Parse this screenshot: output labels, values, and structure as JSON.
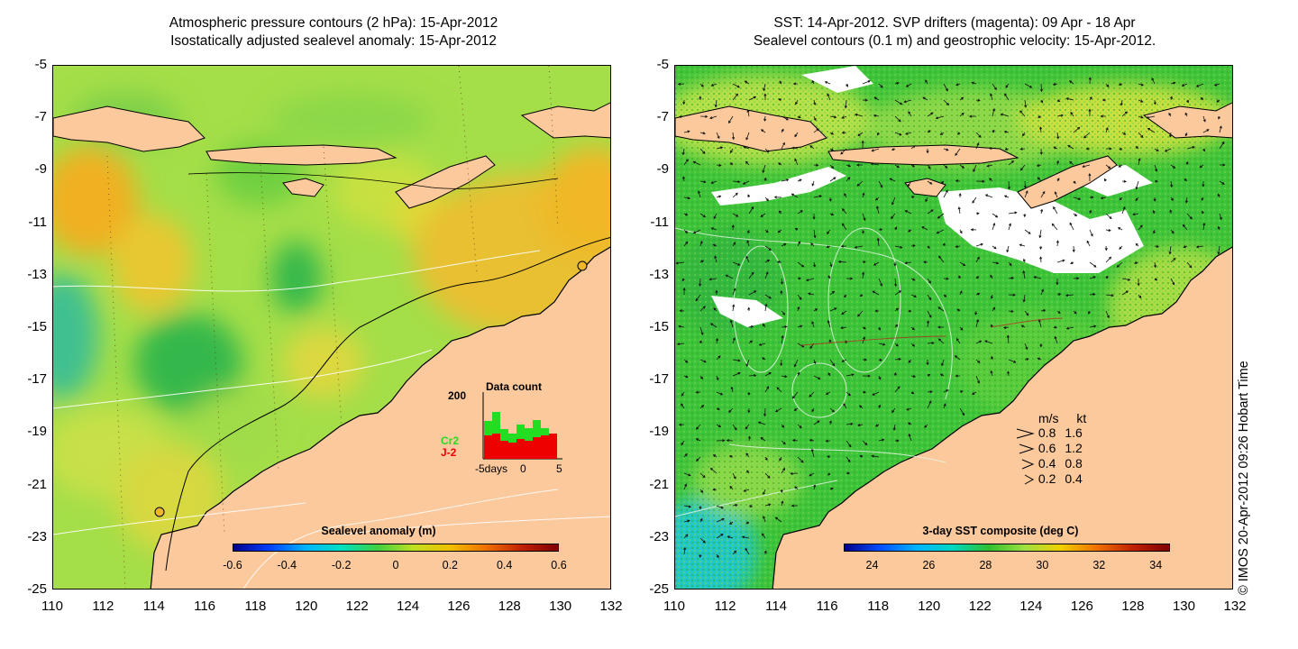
{
  "left_panel": {
    "title_line1": "Atmospheric pressure contours (2 hPa): 15-Apr-2012",
    "title_line2": "Isostatically adjusted sealevel anomaly: 15-Apr-2012",
    "colorbar": {
      "title": "Sealevel anomaly (m)",
      "ticks": [
        "-0.6",
        "-0.4",
        "-0.2",
        "0",
        "0.2",
        "0.4",
        "0.6"
      ],
      "range": [
        -0.6,
        0.6
      ]
    },
    "inset": {
      "title": "Data count",
      "ymax_label": "200",
      "series": [
        {
          "name": "Cr2",
          "color": "#22dd22"
        },
        {
          "name": "J-2",
          "color": "#ee0000"
        }
      ],
      "x_labels": [
        "-5days",
        "0",
        "5"
      ]
    }
  },
  "right_panel": {
    "title_line1": "SST: 14-Apr-2012. SVP drifters (magenta): 09 Apr - 18 Apr",
    "title_line2": "Sealevel contours (0.1 m) and geostrophic velocity: 15-Apr-2012.",
    "colorbar": {
      "title": "3-day SST composite (deg C)",
      "ticks": [
        "24",
        "26",
        "28",
        "30",
        "32",
        "34"
      ],
      "range": [
        23,
        34.5
      ]
    },
    "velocity_legend": {
      "header_ms": "m/s",
      "header_kt": "kt",
      "rows": [
        {
          "ms": "0.8",
          "kt": "1.6"
        },
        {
          "ms": "0.6",
          "kt": "1.2"
        },
        {
          "ms": "0.4",
          "kt": "0.8"
        },
        {
          "ms": "0.2",
          "kt": "0.4"
        }
      ]
    }
  },
  "axes": {
    "latitude_ticks": [
      "-5",
      "-7",
      "-9",
      "-11",
      "-13",
      "-15",
      "-17",
      "-19",
      "-21",
      "-23",
      "-25"
    ],
    "longitude_ticks": [
      "110",
      "112",
      "114",
      "116",
      "118",
      "120",
      "122",
      "124",
      "126",
      "128",
      "130",
      "132"
    ],
    "lat_range": [
      -25,
      -5
    ],
    "lon_range": [
      110,
      132
    ]
  },
  "copyright": "© IMOS 20-Apr-2012 09:26 Hobart Time",
  "colors": {
    "land": "#fbc99c",
    "sla_mid": "#a6e04a",
    "sst_green": "#3ec43a",
    "cloud": "#ffffff"
  }
}
